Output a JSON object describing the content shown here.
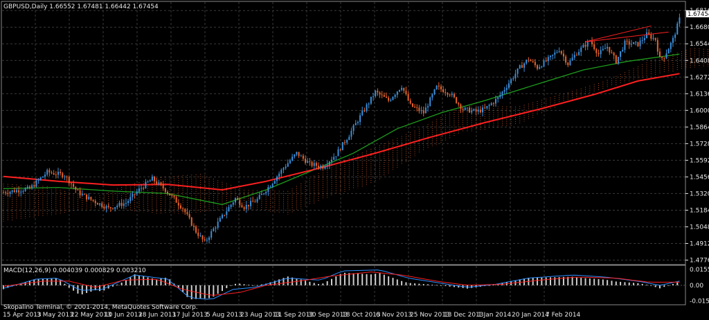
{
  "chart_data": [
    {
      "type": "candlestick",
      "title": "GBPUSD,Daily  1.66552 1.67481 1.66442 1.67454",
      "ylim": [
        1.4745,
        1.6885
      ],
      "yticks": [
        "1.68160",
        "1.66800",
        "1.65440",
        "1.64080",
        "1.62720",
        "1.61360",
        "1.60000",
        "1.58640",
        "1.57280",
        "1.55920",
        "1.54560",
        "1.53200",
        "1.51840",
        "1.50480",
        "1.49120",
        "1.47760"
      ],
      "current_price": "1.67454",
      "xlabels": [
        "15 Apr 2013",
        "3 May 2013",
        "22 May 2013",
        "10 Jun 2013",
        "28 Jun 2013",
        "17 Jul 2013",
        "5 Aug 2013",
        "23 Aug 2013",
        "11 Sep 2013",
        "30 Sep 2013",
        "18 Oct 2013",
        "6 Nov 2013",
        "25 Nov 2013",
        "13 Dec 2013",
        "1 Jan 2014",
        "20 Jan 2014",
        "7 Feb 2014"
      ],
      "price_keypoints": [
        [
          0,
          1.533
        ],
        [
          12,
          1.536
        ],
        [
          20,
          1.5495
        ],
        [
          28,
          1.547
        ],
        [
          34,
          1.533
        ],
        [
          40,
          1.527
        ],
        [
          48,
          1.52
        ],
        [
          56,
          1.5245
        ],
        [
          62,
          1.5352
        ],
        [
          68,
          1.544
        ],
        [
          74,
          1.535
        ],
        [
          82,
          1.52
        ],
        [
          88,
          1.501
        ],
        [
          92,
          1.492
        ],
        [
          96,
          1.503
        ],
        [
          102,
          1.518
        ],
        [
          106,
          1.528
        ],
        [
          110,
          1.521
        ],
        [
          116,
          1.527
        ],
        [
          122,
          1.5392
        ],
        [
          128,
          1.553
        ],
        [
          134,
          1.565
        ],
        [
          140,
          1.556
        ],
        [
          146,
          1.554
        ],
        [
          152,
          1.564
        ],
        [
          158,
          1.58
        ],
        [
          164,
          1.598
        ],
        [
          170,
          1.615
        ],
        [
          176,
          1.608
        ],
        [
          182,
          1.62
        ],
        [
          186,
          1.604
        ],
        [
          192,
          1.598
        ],
        [
          198,
          1.619
        ],
        [
          204,
          1.614
        ],
        [
          210,
          1.601
        ],
        [
          216,
          1.599
        ],
        [
          220,
          1.601
        ],
        [
          226,
          1.61
        ],
        [
          230,
          1.62
        ],
        [
          236,
          1.635
        ],
        [
          240,
          1.642
        ],
        [
          244,
          1.635
        ],
        [
          250,
          1.643
        ],
        [
          254,
          1.65
        ],
        [
          258,
          1.638
        ],
        [
          262,
          1.647
        ],
        [
          268,
          1.657
        ],
        [
          272,
          1.646
        ],
        [
          276,
          1.652
        ],
        [
          280,
          1.64
        ],
        [
          284,
          1.655
        ],
        [
          290,
          1.654
        ],
        [
          294,
          1.662
        ],
        [
          298,
          1.658
        ],
        [
          300,
          1.642
        ],
        [
          302,
          1.644
        ],
        [
          306,
          1.658
        ],
        [
          309,
          1.6745
        ]
      ],
      "series": [
        {
          "kind": "ma_slow",
          "color": "#ff2020",
          "points": [
            [
              0,
              1.546
            ],
            [
              25,
              1.542
            ],
            [
              50,
              1.539
            ],
            [
              75,
              1.5395
            ],
            [
              100,
              1.535
            ],
            [
              120,
              1.542
            ],
            [
              145,
              1.553
            ],
            [
              170,
              1.565
            ],
            [
              195,
              1.578
            ],
            [
              220,
              1.59
            ],
            [
              245,
              1.601
            ],
            [
              270,
              1.613
            ],
            [
              290,
              1.624
            ],
            [
              309,
              1.63
            ]
          ]
        },
        {
          "kind": "ma_mid",
          "color": "#1e9e1e",
          "points": [
            [
              0,
              1.536
            ],
            [
              25,
              1.537
            ],
            [
              50,
              1.534
            ],
            [
              75,
              1.532
            ],
            [
              100,
              1.523
            ],
            [
              120,
              1.535
            ],
            [
              140,
              1.55
            ],
            [
              160,
              1.565
            ],
            [
              180,
              1.585
            ],
            [
              200,
              1.598
            ],
            [
              220,
              1.608
            ],
            [
              245,
              1.622
            ],
            [
              265,
              1.633
            ],
            [
              285,
              1.64
            ],
            [
              309,
              1.646
            ]
          ]
        },
        {
          "kind": "ichimoku_upper",
          "color": "#e6a57a",
          "points": [
            [
              0,
              1.54
            ],
            [
              20,
              1.538
            ],
            [
              40,
              1.528
            ],
            [
              55,
              1.538
            ],
            [
              70,
              1.545
            ],
            [
              90,
              1.548
            ],
            [
              110,
              1.535
            ],
            [
              130,
              1.534
            ],
            [
              150,
              1.555
            ],
            [
              170,
              1.57
            ],
            [
              190,
              1.585
            ],
            [
              210,
              1.604
            ],
            [
              235,
              1.603
            ],
            [
              255,
              1.613
            ],
            [
              275,
              1.624
            ],
            [
              295,
              1.64
            ],
            [
              315,
              1.651
            ],
            [
              335,
              1.648
            ]
          ]
        },
        {
          "kind": "ichimoku_lower",
          "color": "#e6a57a",
          "points": [
            [
              0,
              1.509
            ],
            [
              20,
              1.514
            ],
            [
              40,
              1.519
            ],
            [
              55,
              1.519
            ],
            [
              70,
              1.515
            ],
            [
              90,
              1.516
            ],
            [
              110,
              1.52
            ],
            [
              130,
              1.515
            ],
            [
              150,
              1.53
            ],
            [
              170,
              1.541
            ],
            [
              190,
              1.565
            ],
            [
              210,
              1.582
            ],
            [
              235,
              1.588
            ],
            [
              255,
              1.605
            ],
            [
              275,
              1.618
            ],
            [
              295,
              1.628
            ],
            [
              315,
              1.635
            ],
            [
              335,
              1.638
            ]
          ]
        }
      ],
      "trendlines": [
        {
          "color": "#ff2020",
          "points": [
            [
              266,
              1.656
            ],
            [
              296,
              1.669
            ]
          ]
        },
        {
          "color": "#ff2020",
          "points": [
            [
              266,
              1.656
            ],
            [
              304,
              1.664
            ]
          ]
        }
      ]
    },
    {
      "type": "histogram",
      "title": "MACD(12,26,9) 0.004039 0.000829 0.003210",
      "ylim": [
        -0.0183,
        0.0188
      ],
      "yticks": [
        "0.01551",
        "0.00",
        "-0.01523"
      ],
      "macd_keypoints": [
        [
          0,
          -0.003
        ],
        [
          15,
          0.006
        ],
        [
          25,
          0.007
        ],
        [
          35,
          -0.005
        ],
        [
          45,
          -0.004
        ],
        [
          60,
          0.01
        ],
        [
          75,
          0.006
        ],
        [
          85,
          -0.012
        ],
        [
          95,
          -0.014
        ],
        [
          105,
          -0.004
        ],
        [
          115,
          -0.002
        ],
        [
          130,
          0.007
        ],
        [
          145,
          0.005
        ],
        [
          155,
          0.014
        ],
        [
          172,
          0.015
        ],
        [
          185,
          0.007
        ],
        [
          200,
          0.002
        ],
        [
          212,
          -0.002
        ],
        [
          225,
          0.001
        ],
        [
          240,
          0.007
        ],
        [
          260,
          0.01
        ],
        [
          275,
          0.008
        ],
        [
          290,
          0.004
        ],
        [
          300,
          0.0
        ],
        [
          309,
          0.004
        ]
      ],
      "signal_keypoints": [
        [
          0,
          -0.001
        ],
        [
          18,
          0.004
        ],
        [
          30,
          0.004
        ],
        [
          42,
          -0.002
        ],
        [
          55,
          0.005
        ],
        [
          70,
          0.006
        ],
        [
          82,
          -0.004
        ],
        [
          95,
          -0.01
        ],
        [
          108,
          -0.007
        ],
        [
          120,
          0.0
        ],
        [
          135,
          0.004
        ],
        [
          150,
          0.009
        ],
        [
          168,
          0.013
        ],
        [
          182,
          0.01
        ],
        [
          198,
          0.004
        ],
        [
          212,
          0.0
        ],
        [
          228,
          0.001
        ],
        [
          245,
          0.005
        ],
        [
          262,
          0.008
        ],
        [
          280,
          0.007
        ],
        [
          295,
          0.003
        ],
        [
          309,
          0.003
        ]
      ],
      "series": [
        {
          "kind": "macd",
          "color": "#2f8fff"
        },
        {
          "kind": "signal",
          "color": "#ff2020"
        },
        {
          "kind": "histogram",
          "color": "#cfcfcf"
        }
      ]
    }
  ],
  "colors": {
    "up": "#3b8fdc",
    "down": "#e8632b",
    "grid": "#3a3a3a",
    "axis": "#e8e8e8",
    "price_label_bg": "#ffffff"
  },
  "footer": "Skopalino Terminal, © 2001-2014, MetaQuotes Software Corp."
}
